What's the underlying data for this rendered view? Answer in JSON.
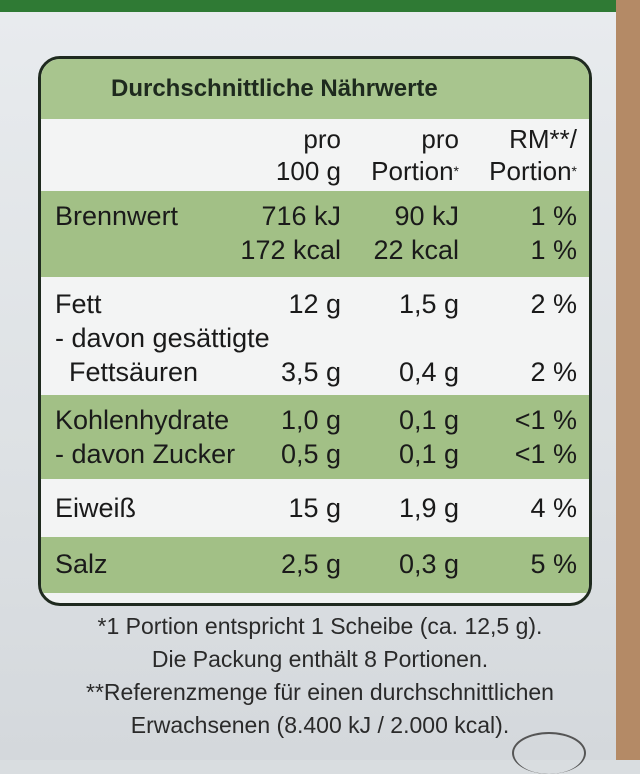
{
  "title": "Durchschnittliche Nährwerte",
  "header": {
    "col2_line1": "pro",
    "col2_line2": "100 g",
    "col3_line1": "pro",
    "col3_line2": "Portion",
    "col3_mark": "*",
    "col4_line1": "RM**/",
    "col4_line2": "Portion",
    "col4_mark": "*"
  },
  "rows": {
    "energy": {
      "label": "Brennwert",
      "kj_100g": "716 kJ",
      "kj_portion": "90 kJ",
      "kj_rm": "1 %",
      "kcal_100g": "172 kcal",
      "kcal_portion": "22 kcal",
      "kcal_rm": "1 %"
    },
    "fat": {
      "label": "Fett",
      "per100": "12 g",
      "portion": "1,5 g",
      "rm": "2 %",
      "sub_label_line1": "- davon gesättigte",
      "sub_label_line2": "Fettsäuren",
      "sub_per100": "3,5 g",
      "sub_portion": "0,4 g",
      "sub_rm": "2 %"
    },
    "carbs": {
      "label": "Kohlenhydrate",
      "per100": "1,0 g",
      "portion": "0,1 g",
      "rm": "<1 %",
      "sub_label": "- davon Zucker",
      "sub_per100": "0,5 g",
      "sub_portion": "0,1 g",
      "sub_rm": "<1 %"
    },
    "protein": {
      "label": "Eiweiß",
      "per100": "15 g",
      "portion": "1,9 g",
      "rm": "4 %"
    },
    "salt": {
      "label": "Salz",
      "per100": "2,5 g",
      "portion": "0,3 g",
      "rm": "5 %"
    }
  },
  "footnotes": {
    "line1": "*1 Portion entspricht 1 Scheibe (ca. 12,5 g).",
    "line2": "Die Packung enthält 8 Portionen.",
    "line3": "**Referenzmenge für einen durchschnittlichen",
    "line4": "Erwachsenen (8.400 kJ / 2.000 kcal)."
  },
  "colors": {
    "title_green": "#a8c58e",
    "row_green": "#a2c086",
    "row_white": "#f3f4f4",
    "border": "#1f2a1f",
    "packaging_green": "#2f7a34"
  }
}
